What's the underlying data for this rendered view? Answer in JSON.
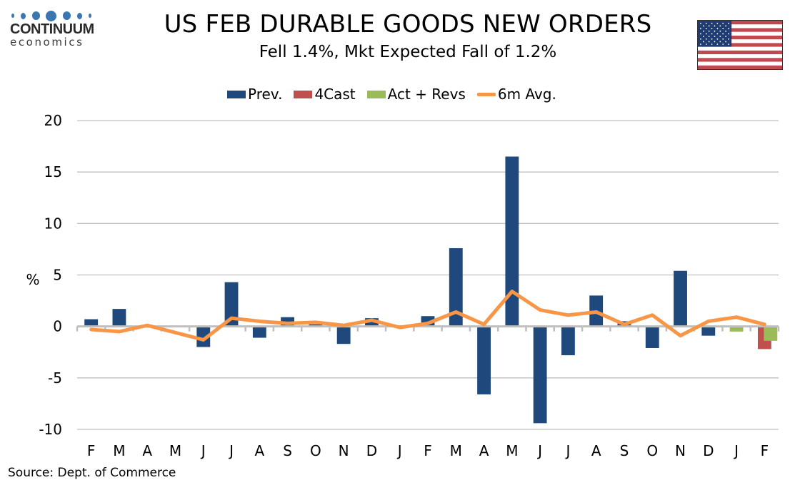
{
  "logo": {
    "name": "CONTINUUM",
    "sub": "economics",
    "color": "#3a76b0"
  },
  "flag_icon": "us-flag-icon",
  "chart_data": {
    "type": "bar",
    "title": "US FEB DURABLE GOODS NEW ORDERS",
    "subtitle": "Fell 1.4%, Mkt Expected Fall of 1.2%",
    "xlabel": "",
    "ylabel": "%",
    "ylim": [
      -10,
      20
    ],
    "yticks": [
      20,
      15,
      10,
      5,
      0,
      -5,
      -10
    ],
    "grid": true,
    "legend_position": "top",
    "categories": [
      "F",
      "M",
      "A",
      "M",
      "J",
      "J",
      "A",
      "S",
      "O",
      "N",
      "D",
      "J",
      "F",
      "M",
      "A",
      "M",
      "J",
      "J",
      "A",
      "S",
      "O",
      "N",
      "D",
      "J",
      "F"
    ],
    "series": [
      {
        "name": "Prev.",
        "type": "bar",
        "color": "#1f497d",
        "values": [
          0.7,
          1.7,
          -0.1,
          0.0,
          -2.0,
          4.3,
          -1.1,
          0.9,
          0.2,
          -1.7,
          0.8,
          0.1,
          1.0,
          7.6,
          -6.6,
          16.5,
          -9.4,
          -2.8,
          3.0,
          0.5,
          -2.1,
          5.4,
          -0.9,
          null,
          null
        ]
      },
      {
        "name": "4Cast",
        "type": "bar",
        "color": "#c0504d",
        "values": [
          null,
          null,
          null,
          null,
          null,
          null,
          null,
          null,
          null,
          null,
          null,
          null,
          null,
          null,
          null,
          null,
          null,
          null,
          null,
          null,
          null,
          null,
          null,
          null,
          -2.2
        ]
      },
      {
        "name": "Act + Revs",
        "type": "bar",
        "color": "#9bbb59",
        "values": [
          null,
          null,
          null,
          null,
          null,
          null,
          null,
          null,
          null,
          null,
          null,
          null,
          null,
          null,
          null,
          null,
          null,
          null,
          null,
          null,
          null,
          null,
          null,
          -0.5,
          -1.4
        ]
      },
      {
        "name": "6m Avg.",
        "type": "line",
        "color": "#f79646",
        "values": [
          -0.3,
          -0.5,
          0.1,
          -0.6,
          -1.3,
          0.8,
          0.5,
          0.3,
          0.4,
          0.1,
          0.6,
          -0.1,
          0.3,
          1.4,
          0.2,
          3.4,
          1.6,
          1.1,
          1.4,
          0.2,
          1.1,
          -0.9,
          0.5,
          0.9,
          0.2
        ]
      }
    ]
  },
  "source": "Source: Dept. of Commerce"
}
